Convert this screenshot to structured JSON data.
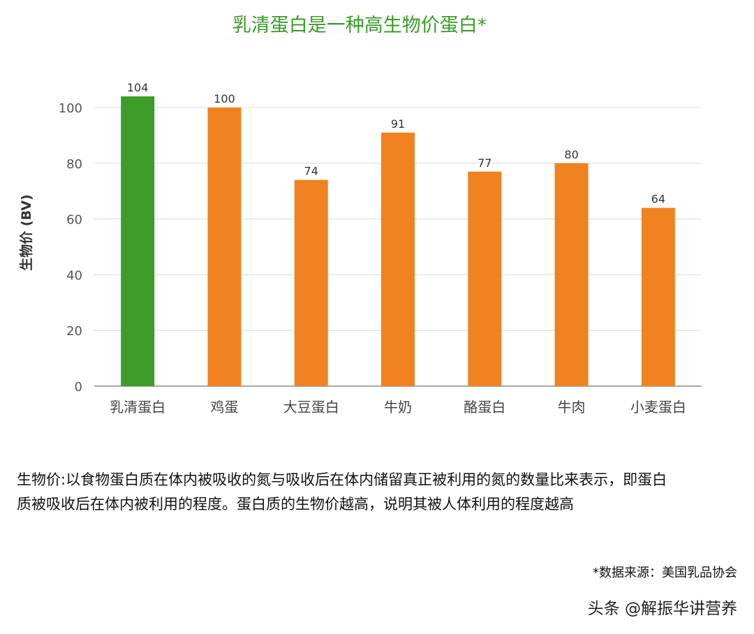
{
  "chart_data": {
    "type": "bar",
    "title": "乳清蛋白是一种高生物价蛋白*",
    "ylabel": "生物价 (BV)",
    "xlabel": "",
    "categories": [
      "乳清蛋白",
      "鸡蛋",
      "大豆蛋白",
      "牛奶",
      "酪蛋白",
      "牛肉",
      "小麦蛋白"
    ],
    "values": [
      104,
      100,
      74,
      91,
      77,
      80,
      64
    ],
    "data_labels": [
      "104",
      "100",
      "74",
      "91",
      "77",
      "80",
      "64"
    ],
    "yticks": [
      "0",
      "20",
      "40",
      "60",
      "80",
      "100"
    ],
    "ylim": [
      0,
      110
    ],
    "grid": true,
    "colors": {
      "highlight": "#3d9b28",
      "default": "#f08220",
      "grid": "#d9d9d9",
      "axis": "#8c8c8c"
    },
    "highlight_index": 0
  },
  "description": "生物价:以食物蛋白质在体内被吸收的氮与吸收后在体内储留真正被利用的氮的数量比来表示，即蛋白质被吸收后在体内被利用的程度。蛋白质的生物价越高，说明其被人体利用的程度越高",
  "source_note": "*数据来源：美国乳品协会",
  "watermark": "头条 @解振华讲营养"
}
